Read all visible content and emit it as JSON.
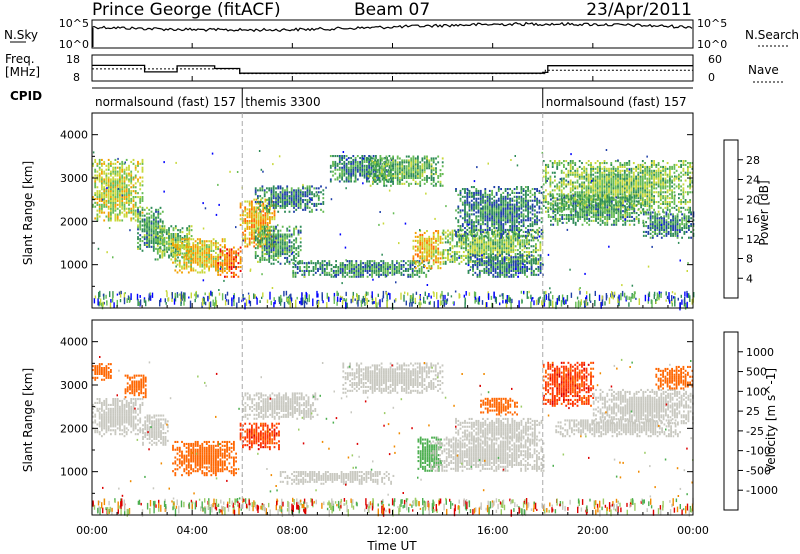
{
  "header": {
    "station": "Prince George (fitACF)",
    "beam": "Beam 07",
    "date": "23/Apr/2011"
  },
  "panels": {
    "noise": {
      "left_label": "N.Sky",
      "right_label": "N.Search",
      "left_ticks": [
        "10^5",
        "10^0"
      ],
      "right_ticks": [
        "10^5",
        "10^0"
      ]
    },
    "freq": {
      "left_label_1": "Freq.",
      "left_label_2": "[MHz]",
      "right_label": "Nave",
      "left_ticks": [
        "18",
        "8"
      ],
      "right_ticks": [
        "60",
        "0"
      ]
    },
    "cpid": {
      "label": "CPID",
      "segments": [
        {
          "start": 0,
          "end": 6,
          "text": "normalsound (fast) 157"
        },
        {
          "start": 6,
          "end": 18,
          "text": "themis 3300"
        },
        {
          "start": 18,
          "end": 24,
          "text": "normalsound (fast) 157"
        }
      ]
    }
  },
  "colors": {
    "power_scale": [
      "#0000ff",
      "#1f3fa8",
      "#2e8b57",
      "#66bb55",
      "#c8d83a",
      "#f2a000",
      "#ff6a00",
      "#ee0000"
    ],
    "velocity_scale": [
      "#1f3fbf",
      "#2e7d32",
      "#4caf50",
      "#9ccc65",
      "#c8c8c0",
      "#c8c8c0",
      "#f08a00",
      "#ff6600",
      "#ff3300",
      "#dd0000"
    ]
  },
  "chart_data": [
    {
      "type": "heatmap",
      "name": "power",
      "xlabel": "Time UT",
      "ylabel": "Slant Range [km]",
      "xlim": [
        0,
        24
      ],
      "ylim": [
        0,
        4500
      ],
      "x_ticks": [
        "00:00",
        "04:00",
        "08:00",
        "12:00",
        "16:00",
        "20:00",
        "00:00"
      ],
      "y_ticks": [
        1000,
        2000,
        3000,
        4000
      ],
      "colorbar": {
        "label": "Power [dB]",
        "ticks": [
          "4",
          "8",
          "12",
          "16",
          "20",
          "24",
          "28"
        ],
        "range": [
          0,
          30
        ]
      },
      "bands": [
        {
          "t0": 0.0,
          "t1": 2.0,
          "r0": 2000,
          "r1": 3400,
          "level": 16
        },
        {
          "t0": 1.8,
          "t1": 2.8,
          "r0": 1300,
          "r1": 2300,
          "level": 11
        },
        {
          "t0": 2.5,
          "t1": 4.0,
          "r0": 1100,
          "r1": 1900,
          "level": 13
        },
        {
          "t0": 3.2,
          "t1": 5.3,
          "r0": 800,
          "r1": 1600,
          "level": 18
        },
        {
          "t0": 5.0,
          "t1": 5.9,
          "r0": 700,
          "r1": 1400,
          "level": 24
        },
        {
          "t0": 5.9,
          "t1": 7.3,
          "r0": 1400,
          "r1": 2500,
          "level": 20
        },
        {
          "t0": 6.5,
          "t1": 8.3,
          "r0": 1000,
          "r1": 1900,
          "level": 11
        },
        {
          "t0": 6.5,
          "t1": 9.2,
          "r0": 2200,
          "r1": 2800,
          "level": 9
        },
        {
          "t0": 8.0,
          "t1": 13.5,
          "r0": 700,
          "r1": 1100,
          "level": 10
        },
        {
          "t0": 9.5,
          "t1": 12.0,
          "r0": 2900,
          "r1": 3500,
          "level": 10
        },
        {
          "t0": 11.0,
          "t1": 14.0,
          "r0": 2800,
          "r1": 3500,
          "level": 12
        },
        {
          "t0": 12.8,
          "t1": 14.0,
          "r0": 900,
          "r1": 1800,
          "level": 19
        },
        {
          "t0": 14.0,
          "t1": 18.0,
          "r0": 1000,
          "r1": 1800,
          "level": 14
        },
        {
          "t0": 14.5,
          "t1": 18.0,
          "r0": 1600,
          "r1": 2800,
          "level": 9
        },
        {
          "t0": 15.0,
          "t1": 18.0,
          "r0": 700,
          "r1": 1200,
          "level": 8
        },
        {
          "t0": 18.0,
          "t1": 24.0,
          "r0": 2200,
          "r1": 3400,
          "level": 14
        },
        {
          "t0": 18.2,
          "t1": 22.0,
          "r0": 1900,
          "r1": 2600,
          "level": 11
        },
        {
          "t0": 22.0,
          "t1": 24.0,
          "r0": 1600,
          "r1": 2200,
          "level": 9
        }
      ]
    },
    {
      "type": "heatmap",
      "name": "velocity",
      "xlabel": "Time UT",
      "ylabel": "Slant Range [km]",
      "xlim": [
        0,
        24
      ],
      "ylim": [
        0,
        4500
      ],
      "x_ticks": [
        "00:00",
        "04:00",
        "08:00",
        "12:00",
        "16:00",
        "20:00",
        "00:00"
      ],
      "y_ticks": [
        1000,
        2000,
        3000,
        4000
      ],
      "colorbar": {
        "label": "Velocity [m s^-1]",
        "ticks": [
          "1000",
          "500",
          "100",
          "25",
          "-25",
          "-100",
          "-500",
          "-1000"
        ]
      },
      "bands": [
        {
          "t0": 0.0,
          "t1": 0.8,
          "r0": 3100,
          "r1": 3500,
          "level": -300
        },
        {
          "t0": 0.0,
          "t1": 2.0,
          "r0": 1800,
          "r1": 2700,
          "level": 0
        },
        {
          "t0": 1.3,
          "t1": 2.2,
          "r0": 2700,
          "r1": 3200,
          "level": -300
        },
        {
          "t0": 2.0,
          "t1": 3.0,
          "r0": 1600,
          "r1": 2300,
          "level": 0
        },
        {
          "t0": 3.2,
          "t1": 5.8,
          "r0": 900,
          "r1": 1700,
          "level": -300
        },
        {
          "t0": 5.9,
          "t1": 7.5,
          "r0": 1500,
          "r1": 2100,
          "level": -600
        },
        {
          "t0": 6.0,
          "t1": 9.0,
          "r0": 2200,
          "r1": 2800,
          "level": 0
        },
        {
          "t0": 7.5,
          "t1": 12.0,
          "r0": 700,
          "r1": 1000,
          "level": 0
        },
        {
          "t0": 10.0,
          "t1": 14.0,
          "r0": 2800,
          "r1": 3500,
          "level": 0
        },
        {
          "t0": 13.0,
          "t1": 13.9,
          "r0": 1000,
          "r1": 1800,
          "level": 200
        },
        {
          "t0": 13.5,
          "t1": 18.0,
          "r0": 1000,
          "r1": 1800,
          "level": 0
        },
        {
          "t0": 14.5,
          "t1": 18.0,
          "r0": 1700,
          "r1": 2200,
          "level": 0
        },
        {
          "t0": 15.5,
          "t1": 17.0,
          "r0": 2300,
          "r1": 2700,
          "level": -300
        },
        {
          "t0": 18.0,
          "t1": 20.0,
          "r0": 2500,
          "r1": 3500,
          "level": -600
        },
        {
          "t0": 20.0,
          "t1": 24.0,
          "r0": 2100,
          "r1": 2900,
          "level": 0
        },
        {
          "t0": 22.5,
          "t1": 24.0,
          "r0": 2900,
          "r1": 3400,
          "level": -300
        },
        {
          "t0": 18.5,
          "t1": 23.5,
          "r0": 1800,
          "r1": 2200,
          "level": 0
        }
      ]
    }
  ]
}
